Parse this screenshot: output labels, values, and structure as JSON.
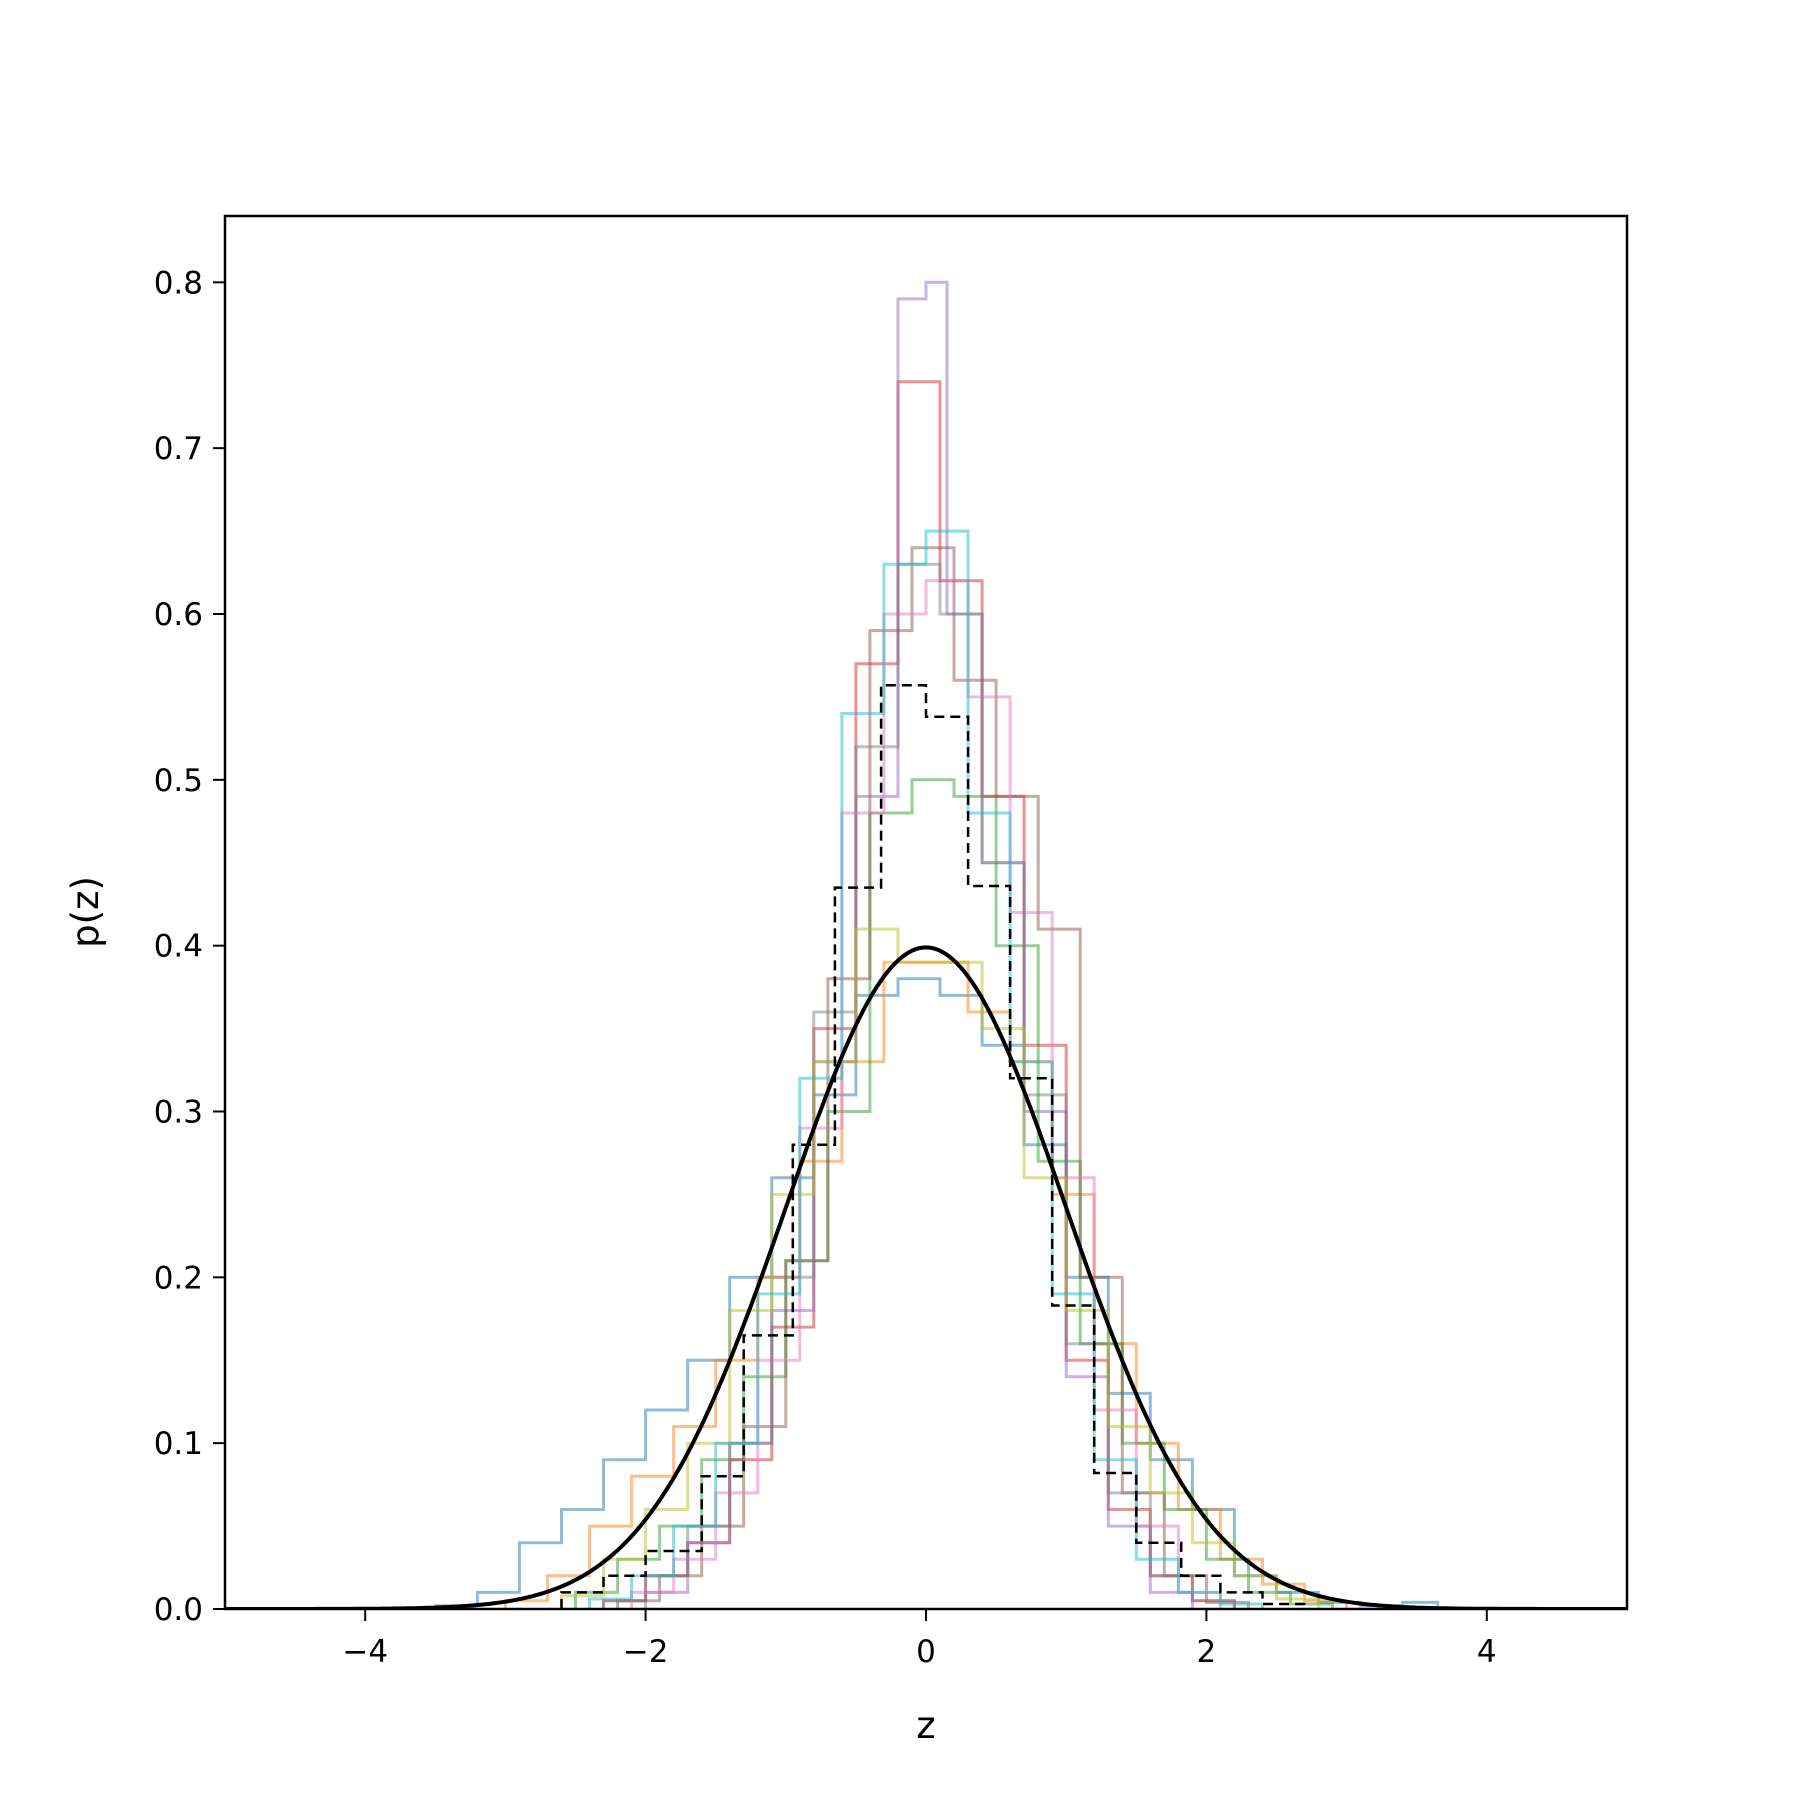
{
  "chart_data": {
    "type": "line",
    "title": "",
    "xlabel": "z",
    "ylabel": "p(z)",
    "xlim": [
      -5,
      5
    ],
    "ylim": [
      0,
      0.84
    ],
    "grid": false,
    "legend": "none",
    "x_ticks": [
      -4,
      -2,
      0,
      2,
      4
    ],
    "x_tick_labels": [
      "−4",
      "−2",
      "0",
      "2",
      "4"
    ],
    "y_ticks": [
      0.0,
      0.1,
      0.2,
      0.3,
      0.4,
      0.5,
      0.6,
      0.7,
      0.8
    ],
    "y_tick_labels": [
      "0.0",
      "0.1",
      "0.2",
      "0.3",
      "0.4",
      "0.5",
      "0.6",
      "0.7",
      "0.8"
    ],
    "step_series": [
      {
        "color": "#1f77b4",
        "edges": [
          -3.5,
          -3.2,
          -2.9,
          -2.6,
          -2.3,
          -2.0,
          -1.7,
          -1.4,
          -1.1,
          -0.8,
          -0.5,
          -0.2,
          0.1,
          0.4,
          0.7,
          1.0,
          1.3,
          1.6,
          1.9,
          2.2,
          2.5,
          2.8,
          3.1,
          3.4,
          3.65
        ],
        "values": [
          0.002,
          0.01,
          0.04,
          0.06,
          0.09,
          0.12,
          0.15,
          0.2,
          0.26,
          0.31,
          0.37,
          0.38,
          0.37,
          0.34,
          0.28,
          0.2,
          0.13,
          0.09,
          0.06,
          0.02,
          0.01,
          0.004,
          0.002,
          0.004
        ]
      },
      {
        "color": "#ff7f0e",
        "edges": [
          -3.0,
          -2.7,
          -2.4,
          -2.1,
          -1.8,
          -1.5,
          -1.2,
          -0.9,
          -0.6,
          -0.3,
          0.0,
          0.3,
          0.6,
          0.9,
          1.2,
          1.5,
          1.8,
          2.1,
          2.4,
          2.7,
          3.0
        ],
        "values": [
          0.005,
          0.02,
          0.05,
          0.08,
          0.11,
          0.15,
          0.2,
          0.27,
          0.33,
          0.39,
          0.39,
          0.36,
          0.33,
          0.25,
          0.16,
          0.1,
          0.06,
          0.03,
          0.015,
          0.005
        ]
      },
      {
        "color": "#2ca02c",
        "edges": [
          -2.5,
          -2.2,
          -1.9,
          -1.6,
          -1.3,
          -1.0,
          -0.7,
          -0.4,
          -0.1,
          0.2,
          0.5,
          0.8,
          1.1,
          1.4,
          1.7,
          2.0,
          2.3,
          2.6,
          2.9
        ],
        "values": [
          0.01,
          0.03,
          0.05,
          0.09,
          0.14,
          0.21,
          0.3,
          0.48,
          0.5,
          0.49,
          0.4,
          0.27,
          0.16,
          0.1,
          0.06,
          0.03,
          0.01,
          0.003
        ]
      },
      {
        "color": "#d62728",
        "edges": [
          -2.3,
          -2.0,
          -1.7,
          -1.4,
          -1.1,
          -0.8,
          -0.5,
          -0.2,
          0.1,
          0.4,
          0.7,
          1.0,
          1.3,
          1.6,
          1.9,
          2.2
        ],
        "values": [
          0.005,
          0.02,
          0.04,
          0.09,
          0.17,
          0.35,
          0.57,
          0.74,
          0.62,
          0.49,
          0.34,
          0.15,
          0.06,
          0.02,
          0.005
        ]
      },
      {
        "color": "#9467bd",
        "edges": [
          -2.0,
          -1.7,
          -1.4,
          -1.1,
          -0.8,
          -0.5,
          -0.2,
          0.0,
          0.15,
          0.4,
          0.7,
          1.0,
          1.3,
          1.6,
          1.9
        ],
        "values": [
          0.01,
          0.04,
          0.1,
          0.18,
          0.33,
          0.49,
          0.79,
          0.8,
          0.6,
          0.45,
          0.3,
          0.14,
          0.05,
          0.01
        ]
      },
      {
        "color": "#8c564b",
        "edges": [
          -2.2,
          -1.9,
          -1.6,
          -1.3,
          -1.0,
          -0.7,
          -0.4,
          -0.1,
          0.2,
          0.5,
          0.8,
          1.1,
          1.4,
          1.7,
          2.0,
          2.3
        ],
        "values": [
          0.005,
          0.02,
          0.05,
          0.11,
          0.21,
          0.38,
          0.59,
          0.64,
          0.56,
          0.49,
          0.41,
          0.2,
          0.07,
          0.02,
          0.004
        ]
      },
      {
        "color": "#e377c2",
        "edges": [
          -2.1,
          -1.8,
          -1.5,
          -1.2,
          -0.9,
          -0.6,
          -0.3,
          0.0,
          0.3,
          0.6,
          0.9,
          1.2,
          1.5,
          1.8,
          2.1
        ],
        "values": [
          0.01,
          0.03,
          0.07,
          0.15,
          0.29,
          0.48,
          0.6,
          0.62,
          0.55,
          0.42,
          0.26,
          0.12,
          0.05,
          0.01
        ]
      },
      {
        "color": "#7f7f7f",
        "edges": [
          -2.3,
          -2.0,
          -1.7,
          -1.4,
          -1.1,
          -0.8,
          -0.5,
          -0.2,
          0.1,
          0.4,
          0.7,
          1.0,
          1.3,
          1.6,
          1.9,
          2.2
        ],
        "values": [
          0.005,
          0.02,
          0.05,
          0.1,
          0.2,
          0.36,
          0.52,
          0.63,
          0.6,
          0.45,
          0.31,
          0.16,
          0.07,
          0.02,
          0.005
        ]
      },
      {
        "color": "#bcbd22",
        "edges": [
          -2.6,
          -2.3,
          -2.0,
          -1.7,
          -1.4,
          -1.1,
          -0.8,
          -0.5,
          -0.2,
          0.1,
          0.4,
          0.7,
          1.0,
          1.3,
          1.6,
          1.9,
          2.2,
          2.5,
          2.8
        ],
        "values": [
          0.008,
          0.03,
          0.06,
          0.1,
          0.18,
          0.25,
          0.33,
          0.41,
          0.39,
          0.39,
          0.35,
          0.26,
          0.18,
          0.11,
          0.07,
          0.04,
          0.02,
          0.006
        ]
      },
      {
        "color": "#17becf",
        "edges": [
          -2.4,
          -2.1,
          -1.8,
          -1.5,
          -1.2,
          -0.9,
          -0.6,
          -0.3,
          0.0,
          0.3,
          0.6,
          0.9,
          1.2,
          1.5,
          1.8,
          2.1,
          2.4
        ],
        "values": [
          0.006,
          0.02,
          0.05,
          0.1,
          0.19,
          0.32,
          0.54,
          0.63,
          0.65,
          0.48,
          0.33,
          0.19,
          0.09,
          0.03,
          0.01,
          0.003
        ]
      }
    ],
    "dashed_series": {
      "color": "#000000",
      "edges": [
        -2.6,
        -2.3,
        -2.0,
        -1.6,
        -1.3,
        -0.95,
        -0.65,
        -0.32,
        0.0,
        0.3,
        0.6,
        0.9,
        1.2,
        1.5,
        1.82,
        2.1,
        2.4,
        2.7
      ],
      "values": [
        0.01,
        0.02,
        0.035,
        0.08,
        0.165,
        0.28,
        0.435,
        0.557,
        0.538,
        0.436,
        0.32,
        0.183,
        0.082,
        0.04,
        0.02,
        0.01,
        0.003
      ]
    },
    "curve": {
      "color": "#000000",
      "label": "",
      "mean": 0,
      "std": 1
    }
  }
}
